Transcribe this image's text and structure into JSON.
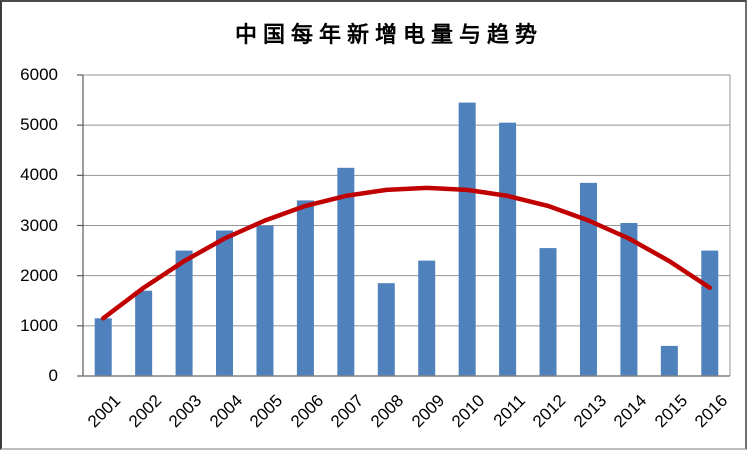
{
  "chart_data": {
    "type": "bar",
    "title": "中国每年新增电量与趋势",
    "xlabel": "",
    "ylabel": "",
    "categories": [
      "2001",
      "2002",
      "2003",
      "2004",
      "2005",
      "2006",
      "2007",
      "2008",
      "2009",
      "2010",
      "2011",
      "2012",
      "2013",
      "2014",
      "2015",
      "2016"
    ],
    "values": [
      1150,
      1700,
      2500,
      2900,
      3000,
      3500,
      4150,
      1850,
      2300,
      5450,
      5050,
      2550,
      3850,
      3050,
      600,
      2500
    ],
    "trend_line": {
      "shape": "quadratic",
      "values": [
        1150,
        1760,
        2290,
        2740,
        3100,
        3390,
        3590,
        3710,
        3750,
        3710,
        3590,
        3390,
        3100,
        2740,
        2290,
        1760
      ],
      "color": "#C00000"
    },
    "bar_color": "#4F81BD",
    "ylim": [
      0,
      6000
    ],
    "ytick_interval": 1000,
    "yticks": [
      "0",
      "1000",
      "2000",
      "3000",
      "4000",
      "5000",
      "6000"
    ],
    "grid": true,
    "legend": "none",
    "colors": {
      "gridline": "#959595",
      "plot_border": "#959595",
      "y_axis": "#595959",
      "x_axis": "#808080",
      "text": "#000000",
      "background": "#FFFFFF"
    }
  }
}
